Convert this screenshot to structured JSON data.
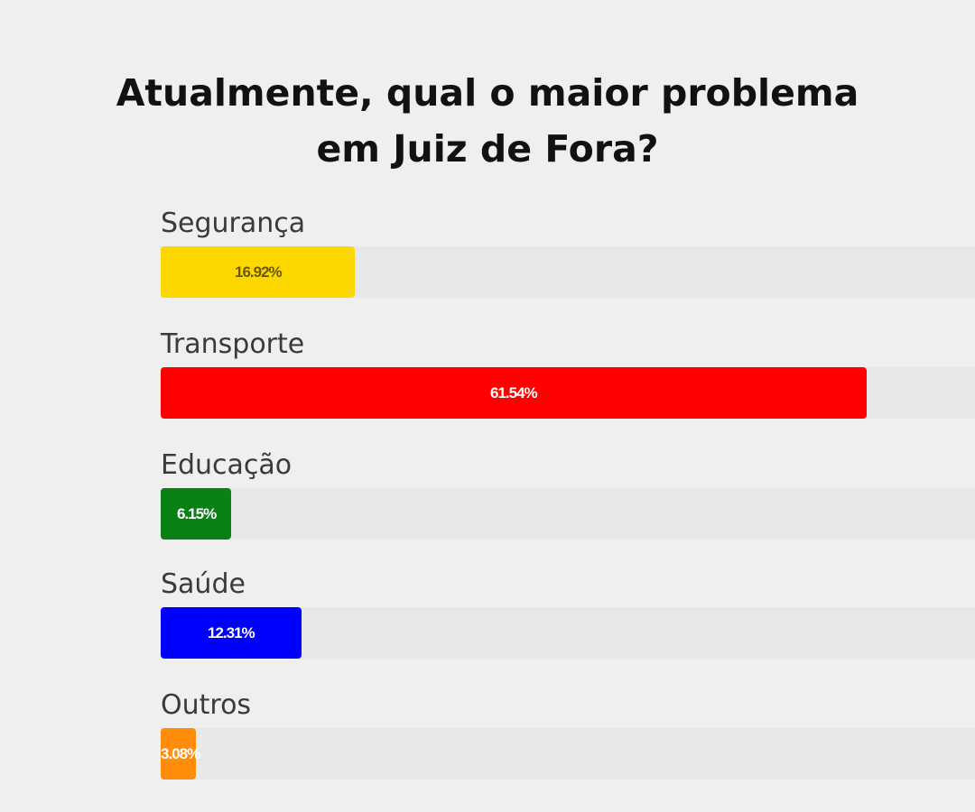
{
  "title": {
    "line1": "Atualmente, qual o maior problema",
    "line2": "em Juiz de Fora?"
  },
  "chart_data": {
    "type": "bar",
    "orientation": "horizontal",
    "title": "Atualmente, qual o maior problema em Juiz de Fora?",
    "categories": [
      "Segurança",
      "Transporte",
      "Educação",
      "Saúde",
      "Outros"
    ],
    "values": [
      16.92,
      61.54,
      6.15,
      12.31,
      3.08
    ],
    "value_labels": [
      "16.92%",
      "61.54%",
      "6.15%",
      "12.31%",
      "3.08%"
    ],
    "unit": "%",
    "xlim": [
      0,
      71
    ],
    "colors": [
      "#fdd700",
      "#ff0000",
      "#0b8014",
      "#0000ff",
      "#ff8c0a"
    ],
    "label_colors": [
      "#6b5a00",
      "#ffffff",
      "#ffffff",
      "#ffffff",
      "#ffffff"
    ],
    "xlabel": "",
    "ylabel": "",
    "grid": false,
    "legend": "none"
  }
}
